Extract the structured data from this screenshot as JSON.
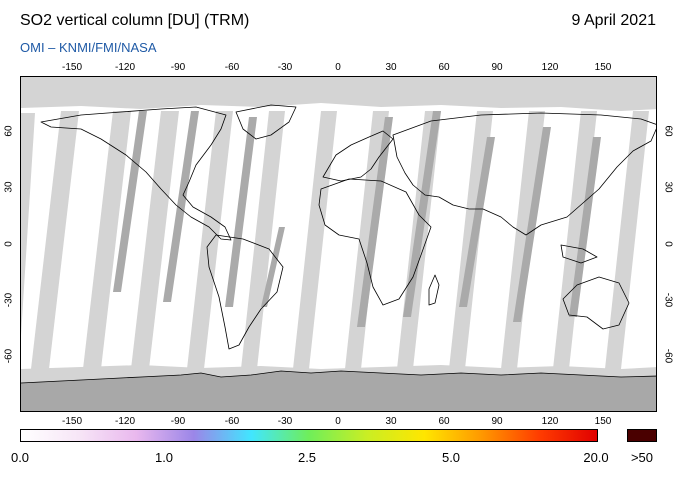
{
  "header": {
    "title": "SO2 vertical column [DU] (TRM)",
    "date": "9 April 2021",
    "credit": "OMI  –  KNMI/FMI/NASA"
  },
  "map": {
    "projection": "equirectangular",
    "lon_ticks": [
      "-150",
      "-120",
      "-90",
      "-60",
      "-30",
      "0",
      "30",
      "60",
      "90",
      "120",
      "150"
    ],
    "lat_ticks": [
      "60",
      "30",
      "0",
      "-30",
      "-60"
    ],
    "colors": {
      "background": "#ffffff",
      "no_data": "#d4d4d4",
      "overlap": "#aaaaaa",
      "coastline": "#000000"
    }
  },
  "legend": {
    "colorbar_labels": [
      "0.0",
      "1.0",
      "2.5",
      "5.0",
      "20.0"
    ],
    "over_label": ">50",
    "over_color": "#4a0000"
  }
}
